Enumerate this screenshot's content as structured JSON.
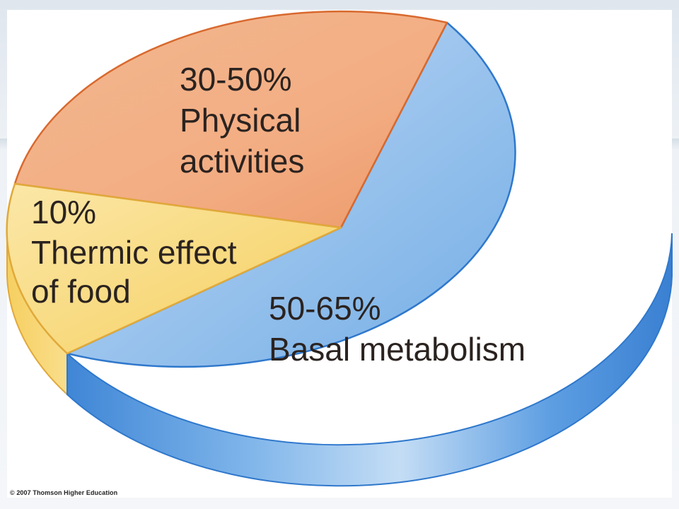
{
  "chart_data": {
    "type": "pie",
    "title": "",
    "slices": [
      {
        "label": "Basal metabolism",
        "percent_text": "50-65%",
        "value": 60,
        "color": "#8ab8e8"
      },
      {
        "label": "Physical activities",
        "percent_text": "30-50%",
        "value": 30,
        "color": "#f0a77a"
      },
      {
        "label": "Thermic effect of food",
        "percent_text": "10%",
        "value": 10,
        "color": "#f8da7c"
      }
    ],
    "labels": {
      "basal": {
        "line1": "50-65%",
        "line2": "Basal metabolism"
      },
      "physical": {
        "line1": "30-50%",
        "line2": "Physical",
        "line3": "activities"
      },
      "thermic": {
        "line1": "10%",
        "line2": "Thermic effect",
        "line3": "of food"
      }
    }
  },
  "copyright": "© 2007 Thomson Higher Education"
}
